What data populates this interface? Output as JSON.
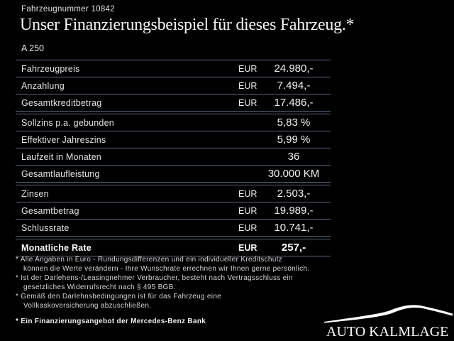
{
  "header": {
    "vehicle_number": "Fahrzeugnummer 10842",
    "title": "Unser Finanzierungsbeispiel für dieses Fahrzeug.*",
    "model": "A 250"
  },
  "finance_table": {
    "groups": [
      {
        "rows": [
          {
            "label": "Fahrzeugpreis",
            "currency": "EUR",
            "value": "24.980,-",
            "bold": false
          },
          {
            "label": "Anzahlung",
            "currency": "EUR",
            "value": "7.494,-",
            "bold": false
          },
          {
            "label": "Gesamtkreditbetrag",
            "currency": "EUR",
            "value": "17.486,-",
            "bold": false
          }
        ]
      },
      {
        "rows": [
          {
            "label": "Sollzins p.a. gebunden",
            "currency": "",
            "value": "5,83 %",
            "bold": false
          },
          {
            "label": "Effektiver Jahreszins",
            "currency": "",
            "value": "5,99 %",
            "bold": false
          },
          {
            "label": "Laufzeit in Monaten",
            "currency": "",
            "value": "36",
            "bold": false
          },
          {
            "label": "Gesamtlaufleistung",
            "currency": "",
            "value": "30.000 KM",
            "bold": false
          }
        ]
      },
      {
        "rows": [
          {
            "label": "Zinsen",
            "currency": "EUR",
            "value": "2.503,-",
            "bold": false
          },
          {
            "label": "Gesamtbetrag",
            "currency": "EUR",
            "value": "19.989,-",
            "bold": false
          },
          {
            "label": "Schlussrate",
            "currency": "EUR",
            "value": "10.741,-",
            "bold": false
          }
        ]
      },
      {
        "rows": [
          {
            "label": "Monatliche Rate",
            "currency": "EUR",
            "value": "257,-",
            "bold": true
          }
        ]
      }
    ]
  },
  "footnotes": {
    "lines": [
      {
        "text": "* Alle Angaben in Euro - Rundungsdifferenzen und ein individueller Kreditschutz",
        "indent": false,
        "bold": false,
        "gap_before": false
      },
      {
        "text": "können die Werte verändern - Ihre Wunschrate errechnen wir Ihnen gerne persönlich.",
        "indent": true,
        "bold": false,
        "gap_before": false
      },
      {
        "text": "* Ist der Darlehens-/Leasingnehmer Verbraucher, besteht nach Vertragsschluss ein",
        "indent": false,
        "bold": false,
        "gap_before": false
      },
      {
        "text": "gesetzliches Widerrufsrecht nach § 495 BGB.",
        "indent": true,
        "bold": false,
        "gap_before": false
      },
      {
        "text": "* Gemäß den Darlehnsbedingungen ist für das Fahrzeug eine",
        "indent": false,
        "bold": false,
        "gap_before": false
      },
      {
        "text": "Vollkaskoversicherung abzuschließen.",
        "indent": true,
        "bold": false,
        "gap_before": false
      },
      {
        "text": "* Ein Finanzierungsangebot der Mercedes-Benz Bank",
        "indent": false,
        "bold": true,
        "gap_before": true
      }
    ]
  },
  "dealer": {
    "name": "AUTO KALMLAGE"
  },
  "colors": {
    "background": "#000000",
    "separator_line": "#5e6b7e",
    "text": "#e8e8e8"
  }
}
